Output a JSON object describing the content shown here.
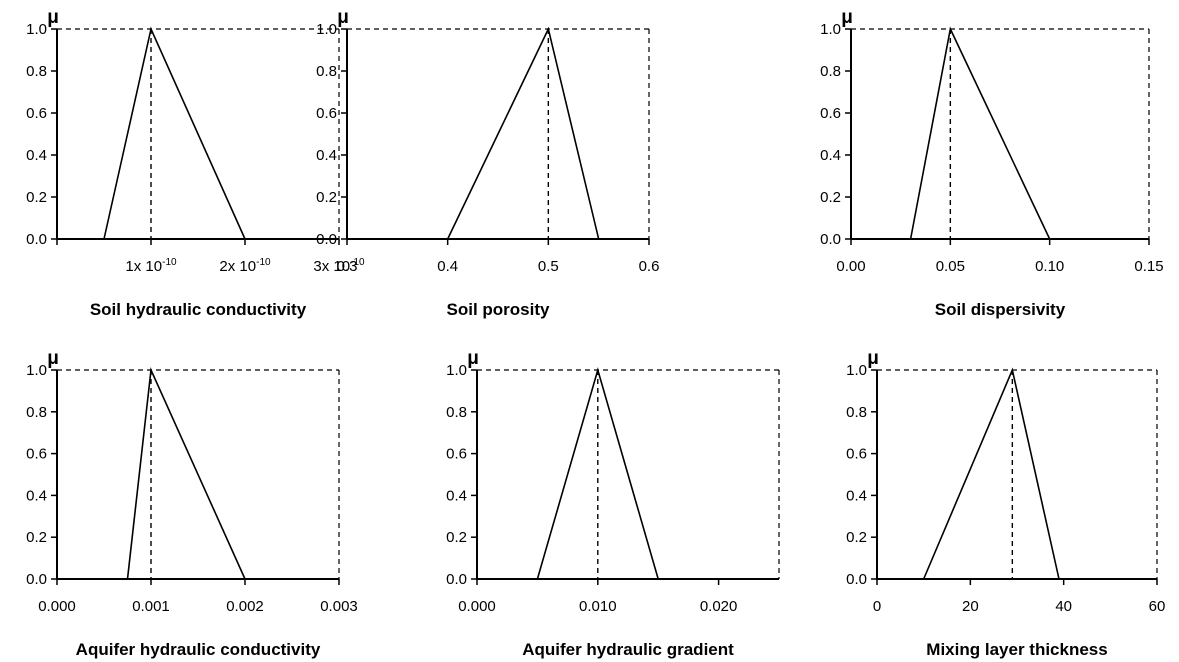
{
  "chart_data": [
    {
      "type": "line",
      "xlabel": "Soil hydraulic conductivity",
      "ylabel": "μ",
      "ylim": [
        0,
        1
      ],
      "xlim": [
        0,
        3e-10
      ],
      "x_ticks": [
        0,
        1e-10,
        2e-10,
        3e-10
      ],
      "x_tick_labels": [
        {
          "base": "",
          "sup": ""
        },
        {
          "base": "1x 10",
          "sup": "-10"
        },
        {
          "base": "2x 10",
          "sup": "-10"
        },
        {
          "base": "3x 10",
          "sup": "-10"
        }
      ],
      "y_ticks": [
        0,
        0.2,
        0.4,
        0.6,
        0.8,
        1.0
      ],
      "y_tick_labels": [
        "0.0",
        "0.2",
        "0.4",
        "0.6",
        "0.8",
        "1.0"
      ],
      "membership": {
        "x": [
          5e-11,
          1e-10,
          2e-10
        ],
        "y": [
          0,
          1,
          0
        ]
      },
      "peak_x": 1e-10
    },
    {
      "type": "line",
      "xlabel": "Soil porosity",
      "ylabel": "μ",
      "ylim": [
        0,
        1
      ],
      "xlim": [
        0.3,
        0.6
      ],
      "x_ticks": [
        0.3,
        0.4,
        0.5,
        0.6
      ],
      "x_tick_labels": [
        "0.3",
        "0.4",
        "0.5",
        "0.6"
      ],
      "y_ticks": [
        0,
        0.2,
        0.4,
        0.6,
        0.8,
        1.0
      ],
      "y_tick_labels": [
        "0.0",
        "0.2",
        "0.4",
        "0.6",
        "0.8",
        "1.0"
      ],
      "membership": {
        "x": [
          0.4,
          0.5,
          0.55
        ],
        "y": [
          0,
          1,
          0
        ]
      },
      "peak_x": 0.5
    },
    {
      "type": "line",
      "xlabel": "Soil dispersivity",
      "ylabel": "μ",
      "ylim": [
        0,
        1
      ],
      "xlim": [
        0,
        0.15
      ],
      "x_ticks": [
        0,
        0.05,
        0.1,
        0.15
      ],
      "x_tick_labels": [
        "0.00",
        "0.05",
        "0.10",
        "0.15"
      ],
      "y_ticks": [
        0,
        0.2,
        0.4,
        0.6,
        0.8,
        1.0
      ],
      "y_tick_labels": [
        "0.0",
        "0.2",
        "0.4",
        "0.6",
        "0.8",
        "1.0"
      ],
      "membership": {
        "x": [
          0.03,
          0.05,
          0.1
        ],
        "y": [
          0,
          1,
          0
        ]
      },
      "peak_x": 0.05
    },
    {
      "type": "line",
      "xlabel": "Aquifer hydraulic conductivity",
      "ylabel": "μ",
      "ylim": [
        0,
        1
      ],
      "xlim": [
        0,
        0.003
      ],
      "x_ticks": [
        0,
        0.001,
        0.002,
        0.003
      ],
      "x_tick_labels": [
        "0.000",
        "0.001",
        "0.002",
        "0.003"
      ],
      "y_ticks": [
        0,
        0.2,
        0.4,
        0.6,
        0.8,
        1.0
      ],
      "y_tick_labels": [
        "0.0",
        "0.2",
        "0.4",
        "0.6",
        "0.8",
        "1.0"
      ],
      "membership": {
        "x": [
          0.00075,
          0.001,
          0.002
        ],
        "y": [
          0,
          1,
          0
        ]
      },
      "peak_x": 0.001
    },
    {
      "type": "line",
      "xlabel": "Aquifer hydraulic gradient",
      "ylabel": "μ",
      "ylim": [
        0,
        1
      ],
      "xlim": [
        0,
        0.025
      ],
      "x_ticks": [
        0,
        0.01,
        0.02
      ],
      "x_tick_labels": [
        "0.000",
        "0.010",
        "0.020"
      ],
      "y_ticks": [
        0,
        0.2,
        0.4,
        0.6,
        0.8,
        1.0
      ],
      "y_tick_labels": [
        "0.0",
        "0.2",
        "0.4",
        "0.6",
        "0.8",
        "1.0"
      ],
      "membership": {
        "x": [
          0.005,
          0.01,
          0.015
        ],
        "y": [
          0,
          1,
          0
        ]
      },
      "peak_x": 0.01
    },
    {
      "type": "line",
      "xlabel": "Mixing layer thickness",
      "ylabel": "μ",
      "ylim": [
        0,
        1
      ],
      "xlim": [
        0,
        60
      ],
      "x_ticks": [
        0,
        20,
        40,
        60
      ],
      "x_tick_labels": [
        "0",
        "20",
        "40",
        "60"
      ],
      "y_ticks": [
        0,
        0.2,
        0.4,
        0.6,
        0.8,
        1.0
      ],
      "y_tick_labels": [
        "0.0",
        "0.2",
        "0.4",
        "0.6",
        "0.8",
        "1.0"
      ],
      "membership": {
        "x": [
          10,
          29,
          39
        ],
        "y": [
          0,
          1,
          0
        ]
      },
      "peak_x": 29
    }
  ]
}
